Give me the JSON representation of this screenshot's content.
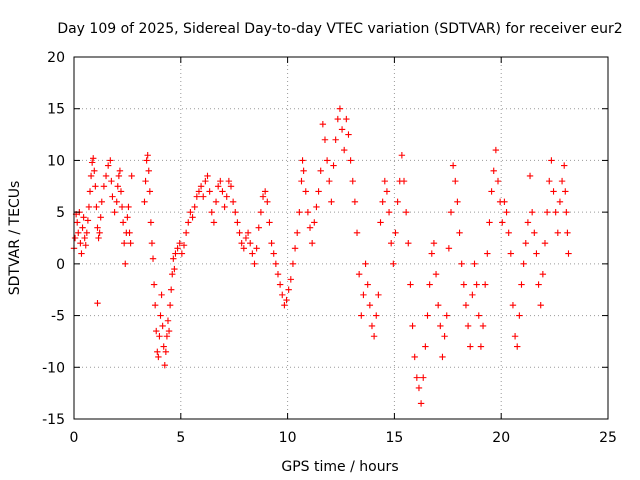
{
  "chart_data": {
    "type": "scatter",
    "title": "Day 109 of 2025, Sidereal Day-to-day VTEC variation (SDTVAR) for receiver eur2",
    "xlabel": "GPS time / hours",
    "ylabel": "SDTVAR / TECUs",
    "xlim": [
      0,
      25
    ],
    "ylim": [
      -15,
      20
    ],
    "xticks": [
      0,
      5,
      10,
      15,
      20,
      25
    ],
    "yticks": [
      -15,
      -10,
      -5,
      0,
      5,
      10,
      15,
      20
    ],
    "xtick_labels": [
      "0",
      "5",
      "10",
      "15",
      "20",
      "25"
    ],
    "ytick_labels": [
      "-15",
      "-10",
      "-5",
      "0",
      "5",
      "10",
      "15",
      "20"
    ],
    "grid": true,
    "marker": "+",
    "color": "#ff0000",
    "series": [
      {
        "name": "SDTVAR",
        "points": [
          [
            0.0,
            1.5
          ],
          [
            0.05,
            2.5
          ],
          [
            0.1,
            4.8
          ],
          [
            0.15,
            4.0
          ],
          [
            0.2,
            3.0
          ],
          [
            0.25,
            5.0
          ],
          [
            0.3,
            2.0
          ],
          [
            0.35,
            1.0
          ],
          [
            0.4,
            3.5
          ],
          [
            0.45,
            4.5
          ],
          [
            0.5,
            2.5
          ],
          [
            0.55,
            1.8
          ],
          [
            0.6,
            3.0
          ],
          [
            0.65,
            4.2
          ],
          [
            0.7,
            5.5
          ],
          [
            0.75,
            7.0
          ],
          [
            0.8,
            8.5
          ],
          [
            0.85,
            9.8
          ],
          [
            0.9,
            10.2
          ],
          [
            0.95,
            9.0
          ],
          [
            1.0,
            7.5
          ],
          [
            1.05,
            5.5
          ],
          [
            1.1,
            3.5
          ],
          [
            1.15,
            2.5
          ],
          [
            1.1,
            -3.8
          ],
          [
            1.2,
            3.0
          ],
          [
            1.25,
            4.5
          ],
          [
            1.3,
            6.0
          ],
          [
            1.4,
            7.5
          ],
          [
            1.5,
            8.5
          ],
          [
            1.6,
            9.5
          ],
          [
            1.7,
            10.0
          ],
          [
            1.75,
            8.0
          ],
          [
            1.8,
            6.5
          ],
          [
            1.9,
            5.0
          ],
          [
            2.0,
            6.0
          ],
          [
            2.05,
            7.5
          ],
          [
            2.1,
            8.5
          ],
          [
            2.15,
            9.0
          ],
          [
            2.2,
            7.0
          ],
          [
            2.25,
            5.5
          ],
          [
            2.3,
            4.0
          ],
          [
            2.35,
            2.0
          ],
          [
            2.4,
            0.0
          ],
          [
            2.45,
            3.0
          ],
          [
            2.5,
            4.5
          ],
          [
            2.55,
            5.5
          ],
          [
            2.6,
            3.0
          ],
          [
            2.65,
            2.0
          ],
          [
            2.7,
            8.5
          ],
          [
            3.3,
            6.0
          ],
          [
            3.35,
            8.0
          ],
          [
            3.4,
            10.0
          ],
          [
            3.45,
            10.5
          ],
          [
            3.5,
            9.0
          ],
          [
            3.55,
            7.0
          ],
          [
            3.6,
            4.0
          ],
          [
            3.65,
            2.0
          ],
          [
            3.7,
            0.5
          ],
          [
            3.75,
            -2.0
          ],
          [
            3.8,
            -4.0
          ],
          [
            3.85,
            -6.5
          ],
          [
            3.9,
            -8.5
          ],
          [
            3.95,
            -9.0
          ],
          [
            4.0,
            -7.0
          ],
          [
            4.05,
            -5.0
          ],
          [
            4.1,
            -3.0
          ],
          [
            4.15,
            -6.0
          ],
          [
            4.2,
            -8.0
          ],
          [
            4.25,
            -9.8
          ],
          [
            4.3,
            -8.5
          ],
          [
            4.35,
            -7.0
          ],
          [
            4.4,
            -5.5
          ],
          [
            4.45,
            -6.5
          ],
          [
            4.5,
            -4.0
          ],
          [
            4.55,
            -2.5
          ],
          [
            4.6,
            -1.0
          ],
          [
            4.65,
            0.5
          ],
          [
            4.7,
            -0.5
          ],
          [
            4.75,
            1.0
          ],
          [
            4.85,
            1.5
          ],
          [
            4.95,
            2.0
          ],
          [
            5.05,
            1.0
          ],
          [
            5.15,
            1.8
          ],
          [
            5.25,
            3.0
          ],
          [
            5.35,
            4.0
          ],
          [
            5.45,
            5.0
          ],
          [
            5.55,
            4.5
          ],
          [
            5.65,
            5.5
          ],
          [
            5.75,
            6.5
          ],
          [
            5.85,
            7.0
          ],
          [
            5.95,
            7.5
          ],
          [
            6.05,
            6.5
          ],
          [
            6.15,
            8.0
          ],
          [
            6.25,
            8.5
          ],
          [
            6.35,
            7.0
          ],
          [
            6.45,
            5.0
          ],
          [
            6.55,
            4.0
          ],
          [
            6.65,
            6.0
          ],
          [
            6.75,
            7.5
          ],
          [
            6.85,
            8.0
          ],
          [
            6.95,
            7.0
          ],
          [
            7.05,
            5.5
          ],
          [
            7.15,
            6.5
          ],
          [
            7.25,
            8.0
          ],
          [
            7.35,
            7.5
          ],
          [
            7.45,
            6.0
          ],
          [
            7.55,
            5.0
          ],
          [
            7.65,
            4.0
          ],
          [
            7.75,
            3.0
          ],
          [
            7.85,
            2.0
          ],
          [
            7.95,
            1.5
          ],
          [
            8.05,
            2.5
          ],
          [
            8.15,
            3.0
          ],
          [
            8.25,
            2.0
          ],
          [
            8.35,
            1.0
          ],
          [
            8.45,
            0.0
          ],
          [
            8.55,
            1.5
          ],
          [
            8.65,
            3.5
          ],
          [
            8.75,
            5.0
          ],
          [
            8.85,
            6.5
          ],
          [
            8.95,
            7.0
          ],
          [
            9.05,
            6.0
          ],
          [
            9.15,
            4.0
          ],
          [
            9.25,
            2.0
          ],
          [
            9.35,
            1.0
          ],
          [
            9.45,
            0.0
          ],
          [
            9.55,
            -1.0
          ],
          [
            9.65,
            -2.0
          ],
          [
            9.75,
            -3.0
          ],
          [
            9.85,
            -4.0
          ],
          [
            9.95,
            -3.5
          ],
          [
            10.05,
            -2.5
          ],
          [
            10.15,
            -1.5
          ],
          [
            10.25,
            0.0
          ],
          [
            10.35,
            1.5
          ],
          [
            10.45,
            3.0
          ],
          [
            10.55,
            5.0
          ],
          [
            10.65,
            8.0
          ],
          [
            10.7,
            10.0
          ],
          [
            10.75,
            9.0
          ],
          [
            10.85,
            7.0
          ],
          [
            10.95,
            5.0
          ],
          [
            11.05,
            3.5
          ],
          [
            11.15,
            2.0
          ],
          [
            11.25,
            4.0
          ],
          [
            11.35,
            5.5
          ],
          [
            11.45,
            7.0
          ],
          [
            11.55,
            9.0
          ],
          [
            11.65,
            13.5
          ],
          [
            11.75,
            12.0
          ],
          [
            11.85,
            10.0
          ],
          [
            11.95,
            8.0
          ],
          [
            12.05,
            6.0
          ],
          [
            12.15,
            9.5
          ],
          [
            12.25,
            12.0
          ],
          [
            12.35,
            14.0
          ],
          [
            12.45,
            15.0
          ],
          [
            12.55,
            13.0
          ],
          [
            12.65,
            11.0
          ],
          [
            12.75,
            14.0
          ],
          [
            12.85,
            12.5
          ],
          [
            12.95,
            10.0
          ],
          [
            13.05,
            8.0
          ],
          [
            13.15,
            6.0
          ],
          [
            13.25,
            3.0
          ],
          [
            13.35,
            -1.0
          ],
          [
            13.45,
            -5.0
          ],
          [
            13.55,
            -3.0
          ],
          [
            13.65,
            0.0
          ],
          [
            13.75,
            -2.0
          ],
          [
            13.85,
            -4.0
          ],
          [
            13.95,
            -6.0
          ],
          [
            14.05,
            -7.0
          ],
          [
            14.15,
            -5.0
          ],
          [
            14.25,
            -3.0
          ],
          [
            14.35,
            4.0
          ],
          [
            14.45,
            6.0
          ],
          [
            14.55,
            8.0
          ],
          [
            14.65,
            7.0
          ],
          [
            14.75,
            5.0
          ],
          [
            14.85,
            2.0
          ],
          [
            14.95,
            0.0
          ],
          [
            15.05,
            3.0
          ],
          [
            15.15,
            6.0
          ],
          [
            15.25,
            8.0
          ],
          [
            15.35,
            10.5
          ],
          [
            15.45,
            8.0
          ],
          [
            15.55,
            5.0
          ],
          [
            15.65,
            2.0
          ],
          [
            15.75,
            -2.0
          ],
          [
            15.85,
            -6.0
          ],
          [
            15.95,
            -9.0
          ],
          [
            16.05,
            -11.0
          ],
          [
            16.15,
            -12.0
          ],
          [
            16.25,
            -13.5
          ],
          [
            16.35,
            -11.0
          ],
          [
            16.45,
            -8.0
          ],
          [
            16.55,
            -5.0
          ],
          [
            16.65,
            -2.0
          ],
          [
            16.75,
            1.0
          ],
          [
            16.85,
            2.0
          ],
          [
            16.95,
            -1.0
          ],
          [
            17.05,
            -4.0
          ],
          [
            17.15,
            -6.0
          ],
          [
            17.25,
            -9.0
          ],
          [
            17.35,
            -7.0
          ],
          [
            17.45,
            -5.0
          ],
          [
            17.55,
            1.5
          ],
          [
            17.65,
            5.0
          ],
          [
            17.75,
            9.5
          ],
          [
            17.85,
            8.0
          ],
          [
            17.95,
            6.0
          ],
          [
            18.05,
            3.0
          ],
          [
            18.15,
            0.0
          ],
          [
            18.25,
            -2.0
          ],
          [
            18.35,
            -4.0
          ],
          [
            18.45,
            -6.0
          ],
          [
            18.55,
            -8.0
          ],
          [
            18.65,
            -3.0
          ],
          [
            18.75,
            0.0
          ],
          [
            18.85,
            -2.0
          ],
          [
            18.95,
            -5.0
          ],
          [
            19.05,
            -8.0
          ],
          [
            19.15,
            -6.0
          ],
          [
            19.25,
            -2.0
          ],
          [
            19.35,
            1.0
          ],
          [
            19.45,
            4.0
          ],
          [
            19.55,
            7.0
          ],
          [
            19.65,
            9.0
          ],
          [
            19.75,
            11.0
          ],
          [
            19.85,
            8.0
          ],
          [
            19.95,
            6.0
          ],
          [
            20.05,
            4.0
          ],
          [
            20.15,
            6.0
          ],
          [
            20.25,
            5.0
          ],
          [
            20.35,
            3.0
          ],
          [
            20.45,
            1.0
          ],
          [
            20.55,
            -4.0
          ],
          [
            20.65,
            -7.0
          ],
          [
            20.75,
            -8.0
          ],
          [
            20.85,
            -5.0
          ],
          [
            20.95,
            -2.0
          ],
          [
            21.05,
            0.0
          ],
          [
            21.15,
            2.0
          ],
          [
            21.25,
            4.0
          ],
          [
            21.35,
            8.5
          ],
          [
            21.45,
            5.0
          ],
          [
            21.55,
            3.0
          ],
          [
            21.65,
            1.0
          ],
          [
            21.75,
            -2.0
          ],
          [
            21.85,
            -4.0
          ],
          [
            21.95,
            -1.0
          ],
          [
            22.05,
            2.0
          ],
          [
            22.15,
            5.0
          ],
          [
            22.25,
            8.0
          ],
          [
            22.35,
            10.0
          ],
          [
            22.45,
            7.0
          ],
          [
            22.55,
            5.0
          ],
          [
            22.65,
            3.0
          ],
          [
            22.75,
            6.0
          ],
          [
            22.85,
            8.0
          ],
          [
            22.95,
            9.5
          ],
          [
            23.0,
            7.0
          ],
          [
            23.05,
            5.0
          ],
          [
            23.1,
            3.0
          ],
          [
            23.15,
            1.0
          ]
        ]
      }
    ]
  }
}
